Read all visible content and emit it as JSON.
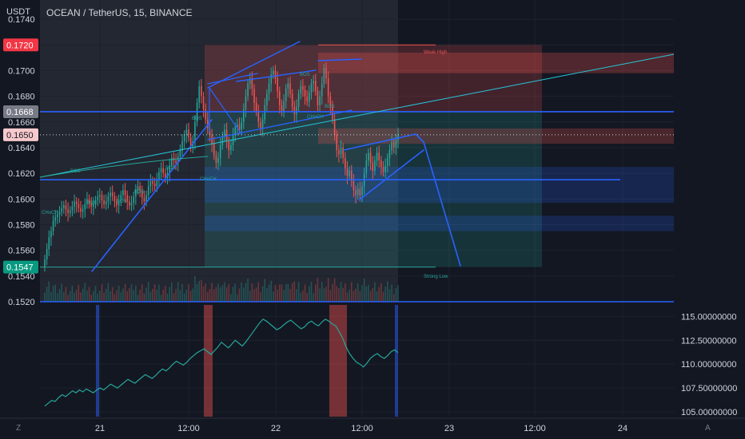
{
  "header": {
    "unit": "USDT",
    "symbol": "OCEAN / TetherUS, 15, BINANCE"
  },
  "colors": {
    "background": "#131722",
    "grid": "#1e222d",
    "up": "#26a69a",
    "down": "#ef5350",
    "trendline": "#2962ff",
    "oscillator": "#26a69a"
  },
  "chart_data": [
    {
      "type": "candlestick",
      "ylim": [
        0.152,
        0.1755
      ],
      "y_ticks": [
        "0.1740",
        "0.1720",
        "0.1700",
        "0.1680",
        "0.1660",
        "0.1640",
        "0.1620",
        "0.1600",
        "0.1580",
        "0.1560",
        "0.1540",
        "0.1520"
      ],
      "x_ticks": [
        "21",
        "12:00",
        "22",
        "12:00",
        "23",
        "12:00",
        "24"
      ],
      "price_badges": [
        {
          "label": "0.1720",
          "value": 0.172,
          "color": "#f23645"
        },
        {
          "label": "0.1668",
          "value": 0.1668,
          "color": "#787b86"
        },
        {
          "label": "0.1650",
          "value": 0.165,
          "color": "#f7c9cc"
        },
        {
          "label": "0.1547",
          "value": 0.1547,
          "color": "#089981"
        }
      ],
      "annotations": {
        "weak_high": "Weak High",
        "strong_low": "Strong Low",
        "bos": "BOS",
        "choch": "CHoCH"
      },
      "close": [
        0.1553,
        0.1561,
        0.157,
        0.1575,
        0.1583,
        0.1586,
        0.1588,
        0.159,
        0.1593,
        0.1595,
        0.1592,
        0.1589,
        0.1591,
        0.1594,
        0.1598,
        0.1596,
        0.1593,
        0.159,
        0.1592,
        0.1596,
        0.16,
        0.1597,
        0.1594,
        0.1596,
        0.1599,
        0.1602,
        0.1603,
        0.1599,
        0.1596,
        0.1598,
        0.1602,
        0.1605,
        0.1602,
        0.1598,
        0.1595,
        0.1598,
        0.1603,
        0.1607,
        0.1603,
        0.1598,
        0.1595,
        0.1597,
        0.1602,
        0.1607,
        0.161,
        0.1606,
        0.1601,
        0.1598,
        0.1603,
        0.161,
        0.1614,
        0.1612,
        0.161,
        0.1615,
        0.1621,
        0.1624,
        0.162,
        0.1617,
        0.162,
        0.1626,
        0.1632,
        0.163,
        0.1628,
        0.1633,
        0.1638,
        0.1645,
        0.165,
        0.1654,
        0.1648,
        0.1641,
        0.1645,
        0.166,
        0.1675,
        0.1688,
        0.168,
        0.167,
        0.1662,
        0.1655,
        0.165,
        0.1643,
        0.1634,
        0.1628,
        0.1632,
        0.1642,
        0.1649,
        0.1654,
        0.1645,
        0.1638,
        0.1642,
        0.165,
        0.1656,
        0.1658,
        0.1654,
        0.166,
        0.167,
        0.168,
        0.169,
        0.1694,
        0.1686,
        0.1675,
        0.1668,
        0.166,
        0.1655,
        0.1662,
        0.1673,
        0.1682,
        0.169,
        0.1697,
        0.17,
        0.1694,
        0.1684,
        0.1673,
        0.1668,
        0.1676,
        0.1686,
        0.169,
        0.1682,
        0.1672,
        0.1666,
        0.1672,
        0.1682,
        0.1688,
        0.1685,
        0.168,
        0.1676,
        0.1683,
        0.169,
        0.1692,
        0.1684,
        0.1673,
        0.168,
        0.169,
        0.1702,
        0.1694,
        0.168,
        0.1672,
        0.1662,
        0.165,
        0.1638,
        0.1635,
        0.164,
        0.1632,
        0.1624,
        0.1618,
        0.1622,
        0.1614,
        0.1607,
        0.1603,
        0.1608,
        0.1603,
        0.161,
        0.162,
        0.163,
        0.1636,
        0.1628,
        0.1622,
        0.163,
        0.1636,
        0.163,
        0.1625,
        0.1621,
        0.1626,
        0.1632,
        0.1638,
        0.1644,
        0.164,
        0.1646,
        0.165
      ]
    },
    {
      "type": "line",
      "ylim": [
        104.5,
        116.2
      ],
      "y_ticks": [
        "115.00000000",
        "112.50000000",
        "110.00000000",
        "107.50000000",
        "105.00000000"
      ],
      "values": [
        105.6,
        105.9,
        106.2,
        106.1,
        106.5,
        106.8,
        106.6,
        106.9,
        107.2,
        107.0,
        107.3,
        107.1,
        107.4,
        107.2,
        107.0,
        107.3,
        107.5,
        107.3,
        107.6,
        107.9,
        107.7,
        107.5,
        107.8,
        108.1,
        108.4,
        108.2,
        108.0,
        108.3,
        108.6,
        108.9,
        108.7,
        108.5,
        108.8,
        109.2,
        109.5,
        109.3,
        109.6,
        110.0,
        110.3,
        110.1,
        109.9,
        110.2,
        110.6,
        110.9,
        111.2,
        111.4,
        111.6,
        111.3,
        111.0,
        111.4,
        111.8,
        112.3,
        112.0,
        111.7,
        112.1,
        112.5,
        112.2,
        111.9,
        112.3,
        112.8,
        113.3,
        113.8,
        114.3,
        114.7,
        114.5,
        114.2,
        113.9,
        113.6,
        113.8,
        114.1,
        114.4,
        114.6,
        114.3,
        114.0,
        113.7,
        113.9,
        114.3,
        114.5,
        114.2,
        114.0,
        114.4,
        114.7,
        114.5,
        114.2,
        114.0,
        113.4,
        112.7,
        111.8,
        111.1,
        110.6,
        110.2,
        110.0,
        109.7,
        110.1,
        110.6,
        110.9,
        111.1,
        110.8,
        110.6,
        110.9,
        111.3,
        111.5,
        111.2
      ]
    }
  ]
}
